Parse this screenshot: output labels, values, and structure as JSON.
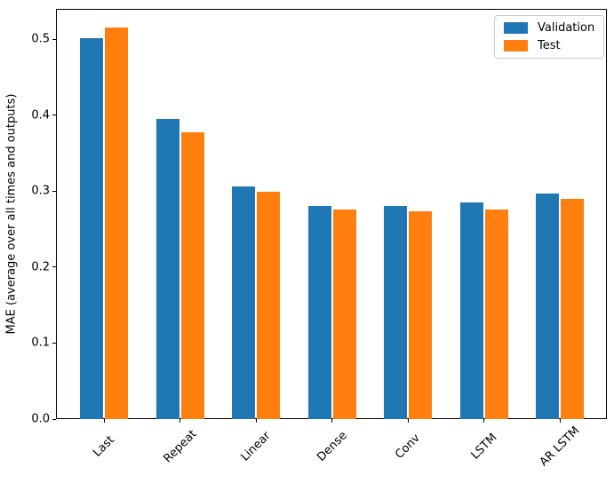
{
  "chart_data": {
    "type": "bar",
    "title": "",
    "xlabel": "",
    "ylabel": "MAE (average over all times and outputs)",
    "categories": [
      "Last",
      "Repeat",
      "Linear",
      "Dense",
      "Conv",
      "LSTM",
      "AR LSTM"
    ],
    "series": [
      {
        "name": "Validation",
        "color": "#1f77b4",
        "values": [
          0.501,
          0.395,
          0.306,
          0.28,
          0.28,
          0.285,
          0.297
        ]
      },
      {
        "name": "Test",
        "color": "#ff7f0e",
        "values": [
          0.515,
          0.377,
          0.299,
          0.276,
          0.274,
          0.276,
          0.29
        ]
      }
    ],
    "ylim": [
      0,
      0.54
    ],
    "yticks": [
      0.0,
      0.1,
      0.2,
      0.3,
      0.4,
      0.5
    ],
    "ytick_labels": [
      "0.0",
      "0.1",
      "0.2",
      "0.3",
      "0.4",
      "0.5"
    ],
    "xtick_rotation": 45,
    "grid": false,
    "legend": {
      "position": "upper right",
      "entries": [
        "Validation",
        "Test"
      ]
    }
  }
}
